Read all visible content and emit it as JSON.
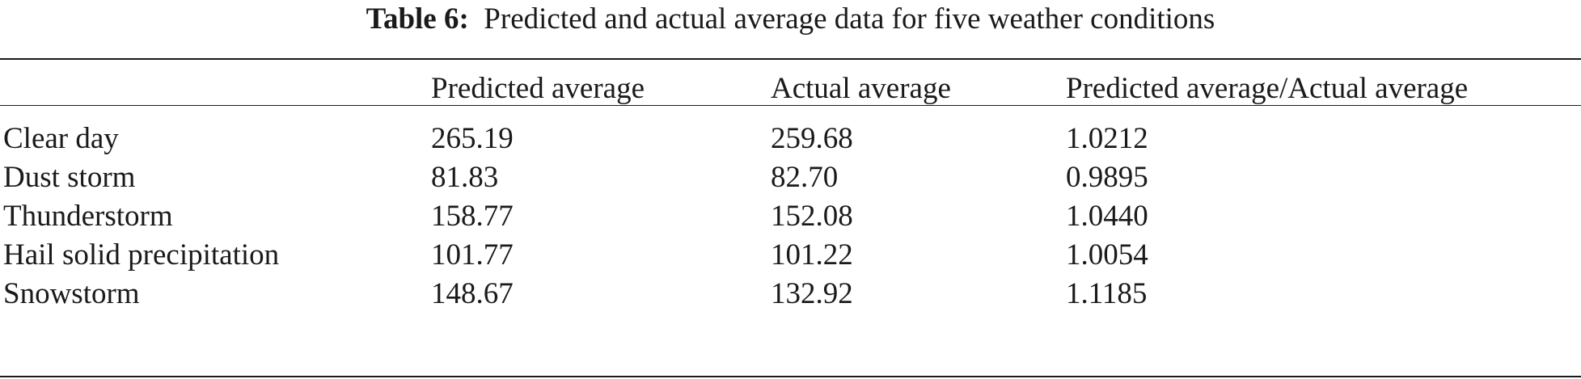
{
  "caption": {
    "label": "Table 6:",
    "text": "Predicted and actual average data for five weather conditions"
  },
  "table": {
    "headers": [
      "",
      "Predicted average",
      "Actual average",
      "Predicted average/Actual average"
    ],
    "rows": [
      [
        "Clear day",
        "265.19",
        "259.68",
        "1.0212"
      ],
      [
        "Dust storm",
        "81.83",
        "82.70",
        "0.9895"
      ],
      [
        "Thunderstorm",
        "158.77",
        "152.08",
        "1.0440"
      ],
      [
        "Hail solid precipitation",
        "101.77",
        "101.22",
        "1.0054"
      ],
      [
        "Snowstorm",
        "148.67",
        "132.92",
        "1.1185"
      ]
    ]
  }
}
